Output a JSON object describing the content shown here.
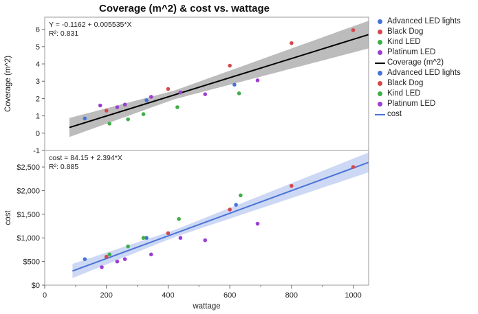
{
  "title": "Coverage (m^2) & cost vs. wattage",
  "colors": {
    "Advanced LED lights": "#4472d9",
    "Black Dog": "#d5474b",
    "Kind LED": "#3fae49",
    "Platinum LED": "#9b3fd1",
    "coverage_fit": "#000000",
    "coverage_band": "#bcbcbc",
    "cost_fit": "#4a73d6",
    "cost_band": "#cdd8f4"
  },
  "legend": [
    {
      "label": "Advanced LED lights",
      "kind": "dot",
      "color": "#4472d9"
    },
    {
      "label": "Black Dog",
      "kind": "dot",
      "color": "#d5474b"
    },
    {
      "label": "Kind LED",
      "kind": "dot",
      "color": "#3fae49"
    },
    {
      "label": "Platinum LED",
      "kind": "dot",
      "color": "#9b3fd1"
    },
    {
      "label": "Coverage (m^2)",
      "kind": "line",
      "color": "#000000"
    },
    {
      "label": "Advanced LED lights",
      "kind": "dot",
      "color": "#4472d9"
    },
    {
      "label": "Black Dog",
      "kind": "dot",
      "color": "#d5474b"
    },
    {
      "label": "Kind LED",
      "kind": "dot",
      "color": "#3fae49"
    },
    {
      "label": "Platinum LED",
      "kind": "dot",
      "color": "#9b3fd1"
    },
    {
      "label": "cost",
      "kind": "line",
      "color": "#4a73d6"
    }
  ],
  "chart_data": [
    {
      "type": "scatter",
      "panel": "top",
      "title": "Coverage (m^2) & cost vs. wattage",
      "xlabel": "wattage",
      "ylabel": "Coverage (m^2)",
      "xlim": [
        0,
        1050
      ],
      "ylim": [
        -1,
        6.7
      ],
      "y_ticks": [
        {
          "value": -1,
          "label": "-1"
        },
        {
          "value": 0,
          "label": "0"
        },
        {
          "value": 1,
          "label": "1"
        },
        {
          "value": 2,
          "label": "2"
        },
        {
          "value": 3,
          "label": "3"
        },
        {
          "value": 4,
          "label": "4"
        },
        {
          "value": 5,
          "label": "5"
        },
        {
          "value": 6,
          "label": "6"
        }
      ],
      "fit": {
        "intercept": -0.1162,
        "slope": 0.005535,
        "x_range": [
          80,
          1050
        ]
      },
      "band_halfwidth": {
        "at_x": [
          80,
          420,
          1050
        ],
        "half": [
          0.55,
          0.25,
          0.8
        ]
      },
      "annotation": [
        "Y = -0.1162 + 0.005535*X",
        "R²: 0.831"
      ],
      "grid": false,
      "series": [
        {
          "name": "Advanced LED lights",
          "points": [
            [
              130,
              0.85
            ],
            [
              330,
              1.9
            ],
            [
              615,
              2.8
            ]
          ]
        },
        {
          "name": "Black Dog",
          "points": [
            [
              200,
              1.3
            ],
            [
              400,
              2.55
            ],
            [
              600,
              3.9
            ],
            [
              800,
              5.2
            ],
            [
              1000,
              5.95
            ]
          ]
        },
        {
          "name": "Kind LED",
          "points": [
            [
              210,
              0.55
            ],
            [
              270,
              0.8
            ],
            [
              320,
              1.1
            ],
            [
              430,
              1.5
            ],
            [
              630,
              2.3
            ]
          ]
        },
        {
          "name": "Platinum LED",
          "points": [
            [
              180,
              1.6
            ],
            [
              235,
              1.5
            ],
            [
              260,
              1.65
            ],
            [
              345,
              2.1
            ],
            [
              440,
              2.35
            ],
            [
              520,
              2.25
            ],
            [
              690,
              3.05
            ]
          ]
        }
      ]
    },
    {
      "type": "scatter",
      "panel": "bottom",
      "xlabel": "wattage",
      "ylabel": "cost",
      "xlim": [
        0,
        1050
      ],
      "ylim": [
        0,
        2850
      ],
      "x_ticks": [
        {
          "value": 0,
          "label": "0"
        },
        {
          "value": 200,
          "label": "200"
        },
        {
          "value": 400,
          "label": "400"
        },
        {
          "value": 600,
          "label": "600"
        },
        {
          "value": 800,
          "label": "800"
        },
        {
          "value": 1000,
          "label": "1000"
        }
      ],
      "y_ticks": [
        {
          "value": 0,
          "label": "$0"
        },
        {
          "value": 500,
          "label": "$500"
        },
        {
          "value": 1000,
          "label": "$1,000"
        },
        {
          "value": 1500,
          "label": "$1,500"
        },
        {
          "value": 2000,
          "label": "$2,000"
        },
        {
          "value": 2500,
          "label": "$2,500"
        }
      ],
      "fit": {
        "intercept": 84.15,
        "slope": 2.394,
        "x_range": [
          90,
          1050
        ]
      },
      "band_halfwidth": {
        "at_x": [
          90,
          420,
          1050
        ],
        "half": [
          150,
          75,
          210
        ]
      },
      "annotation": [
        "cost = 84.15 + 2.394*X",
        "R²: 0.885"
      ],
      "grid": false,
      "series": [
        {
          "name": "Advanced LED lights",
          "points": [
            [
              130,
              550
            ],
            [
              330,
              1000
            ],
            [
              620,
              1700
            ]
          ]
        },
        {
          "name": "Black Dog",
          "points": [
            [
              200,
              600
            ],
            [
              400,
              1100
            ],
            [
              600,
              1600
            ],
            [
              800,
              2100
            ],
            [
              1000,
              2500
            ]
          ]
        },
        {
          "name": "Kind LED",
          "points": [
            [
              210,
              650
            ],
            [
              270,
              820
            ],
            [
              320,
              1000
            ],
            [
              435,
              1400
            ],
            [
              635,
              1900
            ]
          ]
        },
        {
          "name": "Platinum LED",
          "points": [
            [
              185,
              380
            ],
            [
              235,
              500
            ],
            [
              260,
              550
            ],
            [
              345,
              650
            ],
            [
              440,
              1000
            ],
            [
              520,
              950
            ],
            [
              690,
              1300
            ]
          ]
        }
      ]
    }
  ]
}
